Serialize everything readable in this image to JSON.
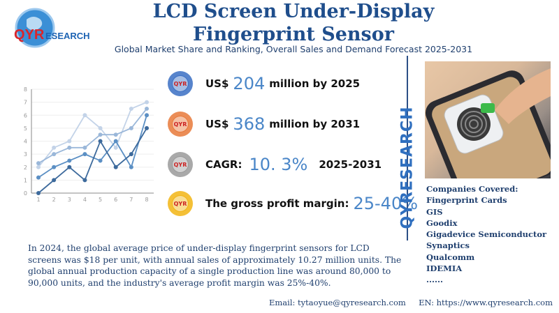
{
  "header": {
    "title": "LCD Screen Under-Display Fingerprint Sensor",
    "subtitle": "Global Market Share and Ranking, Overall Sales and Demand Forecast 2025-2031",
    "logo_text": "QYRESEARCH"
  },
  "stats": [
    {
      "prefix": "US$",
      "value": "204",
      "suffix": "million by 2025",
      "color": "#3a6fc4"
    },
    {
      "prefix": "US$",
      "value": "368",
      "suffix": "million by 2031",
      "color": "#e8793a"
    },
    {
      "prefix": "CAGR:",
      "value": "10. 3%",
      "suffix": "2025-2031",
      "color": "#9a9a9a"
    },
    {
      "prefix": "The gross profit margin:",
      "value": "25-40%",
      "suffix": "",
      "color": "#f2b515"
    }
  ],
  "badge_text": "QYR",
  "vertical_brand": "QYRESEARCH",
  "companies": {
    "heading": "Companies Covered:",
    "items": [
      "Fingerprint Cards",
      "GIS",
      "Goodix",
      "Gigadevice Semiconductor",
      "Synaptics",
      "Qualcomm",
      "IDEMIA",
      "......"
    ]
  },
  "description": "In 2024, the global average price of under-display fingerprint sensors for LCD screens was $18 per unit, with annual sales of approximately 10.27 million units. The global annual production capacity of a single production line was around 80,000 to 90,000 units, and the industry's average profit margin was 25%-40%.",
  "footer": {
    "email_label": "Email:",
    "email": "tytaoyue@qyresearch.com",
    "web_label": "EN:",
    "web": "https://www.qyresearch.com"
  },
  "chart_data": {
    "type": "line",
    "x": [
      1,
      2,
      3,
      4,
      5,
      6,
      7,
      8
    ],
    "ylim": [
      0,
      8
    ],
    "yticks": [
      0,
      1,
      2,
      3,
      4,
      5,
      6,
      7,
      8
    ],
    "grid": true,
    "series": [
      {
        "values": [
          2,
          3.5,
          4,
          6,
          5,
          3.5,
          6.5,
          7
        ],
        "color": "#c3d3e8"
      },
      {
        "values": [
          2.3,
          3,
          3.5,
          3.5,
          4.5,
          4.5,
          5,
          6.5
        ],
        "color": "#9ab7d9"
      },
      {
        "values": [
          1.2,
          2,
          2.5,
          3,
          2.5,
          4,
          2,
          6
        ],
        "color": "#5b8fc4"
      },
      {
        "values": [
          0,
          1,
          2,
          1,
          4,
          2,
          3,
          5
        ],
        "color": "#3d6a9c"
      }
    ]
  }
}
